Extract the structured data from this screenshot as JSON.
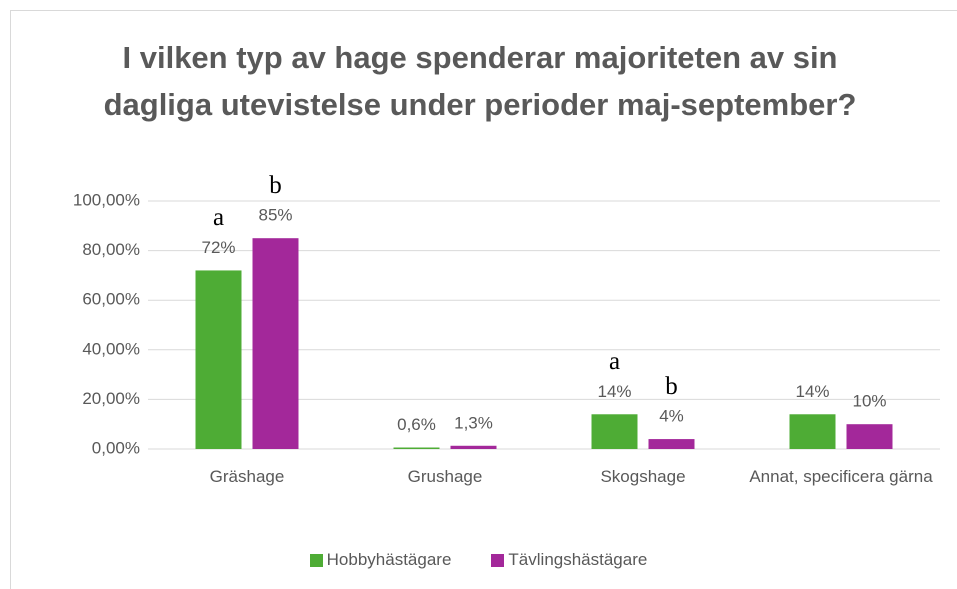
{
  "chart_data": {
    "type": "bar",
    "title": "I vilken typ av hage spenderar majoriteten av sin dagliga utevistelse under perioder maj-september?",
    "categories": [
      "Gräshage",
      "Grushage",
      "Skogshage",
      "Annat, specificera gärna"
    ],
    "series": [
      {
        "name": "Hobbyhästägare",
        "color": "#4eac35",
        "values": [
          72,
          0.6,
          14,
          14
        ],
        "value_labels": [
          "72%",
          "0,6%",
          "14%",
          "14%"
        ],
        "annotations": [
          "a",
          null,
          "a",
          null
        ]
      },
      {
        "name": "Tävlingshästägare",
        "color": "#a3289a",
        "values": [
          85,
          1.3,
          4,
          10
        ],
        "value_labels": [
          "85%",
          "1,3%",
          "4%",
          "10%"
        ],
        "annotations": [
          "b",
          null,
          "b",
          null
        ]
      }
    ],
    "ylim": [
      0,
      100
    ],
    "yticks": [
      {
        "value": 0,
        "label": "0,00%"
      },
      {
        "value": 20,
        "label": "20,00%"
      },
      {
        "value": 40,
        "label": "40,00%"
      },
      {
        "value": 60,
        "label": "60,00%"
      },
      {
        "value": 80,
        "label": "80,00%"
      },
      {
        "value": 100,
        "label": "100,00%"
      }
    ],
    "grid": true,
    "legend": "bottom"
  }
}
